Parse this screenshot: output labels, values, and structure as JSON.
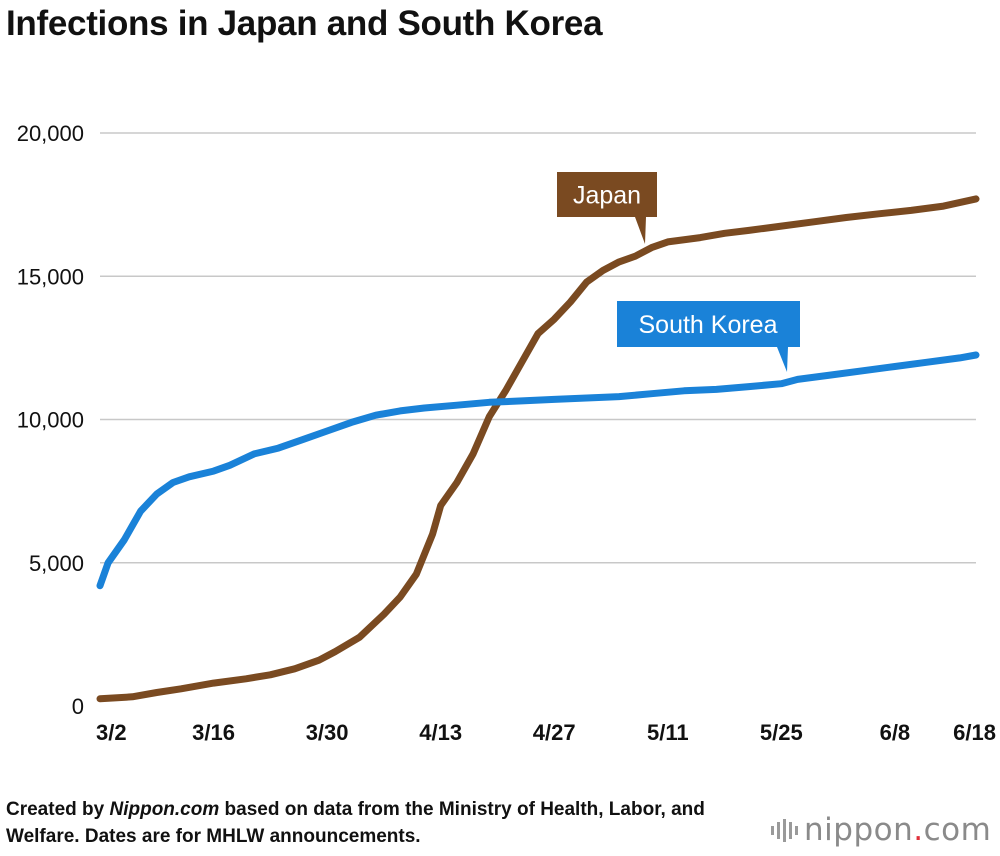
{
  "title": "Infections in Japan and South Korea",
  "caption": {
    "prefix": "Created by ",
    "source": "Nippon.com",
    "suffix": " based on data from the Ministry of Health, Labor, and Welfare. Dates are for MHLW announcements."
  },
  "logo": {
    "name": "nippon",
    "dot": ".",
    "tld": "com"
  },
  "colors": {
    "japan": "#7a4a21",
    "korea": "#1a82d8",
    "grid": "#c8c8c8"
  },
  "chart_data": {
    "type": "line",
    "title": "Infections in Japan and South Korea",
    "xlabel": "",
    "ylabel": "",
    "x_tick_labels": [
      "3/2",
      "3/16",
      "3/30",
      "4/13",
      "4/27",
      "5/11",
      "5/25",
      "6/8",
      "6/18"
    ],
    "x_tick_days": [
      0,
      14,
      28,
      42,
      56,
      70,
      84,
      98,
      108
    ],
    "xlim": [
      0,
      108
    ],
    "ylim": [
      0,
      20000
    ],
    "y_ticks": [
      0,
      5000,
      10000,
      15000,
      20000
    ],
    "y_tick_labels": [
      "0",
      "5,000",
      "10,000",
      "15,000",
      "20,000"
    ],
    "grid": true,
    "series": [
      {
        "name": "Japan",
        "label": "Japan",
        "points": [
          [
            0,
            250
          ],
          [
            4,
            320
          ],
          [
            7,
            470
          ],
          [
            10,
            600
          ],
          [
            14,
            800
          ],
          [
            18,
            950
          ],
          [
            21,
            1090
          ],
          [
            24,
            1300
          ],
          [
            27,
            1600
          ],
          [
            29,
            1900
          ],
          [
            32,
            2400
          ],
          [
            35,
            3200
          ],
          [
            37,
            3800
          ],
          [
            39,
            4600
          ],
          [
            41,
            6000
          ],
          [
            42,
            7000
          ],
          [
            44,
            7800
          ],
          [
            46,
            8800
          ],
          [
            48,
            10100
          ],
          [
            50,
            11000
          ],
          [
            52,
            12000
          ],
          [
            54,
            13000
          ],
          [
            56,
            13500
          ],
          [
            58,
            14100
          ],
          [
            60,
            14800
          ],
          [
            62,
            15200
          ],
          [
            64,
            15500
          ],
          [
            66,
            15700
          ],
          [
            68,
            16000
          ],
          [
            70,
            16200
          ],
          [
            74,
            16350
          ],
          [
            77,
            16500
          ],
          [
            80,
            16600
          ],
          [
            84,
            16750
          ],
          [
            88,
            16900
          ],
          [
            92,
            17050
          ],
          [
            96,
            17180
          ],
          [
            100,
            17300
          ],
          [
            104,
            17450
          ],
          [
            108,
            17700
          ]
        ]
      },
      {
        "name": "South Korea",
        "label": "South Korea",
        "points": [
          [
            0,
            4200
          ],
          [
            1,
            5000
          ],
          [
            3,
            5800
          ],
          [
            5,
            6800
          ],
          [
            7,
            7400
          ],
          [
            9,
            7800
          ],
          [
            11,
            8000
          ],
          [
            14,
            8200
          ],
          [
            16,
            8400
          ],
          [
            19,
            8800
          ],
          [
            22,
            9000
          ],
          [
            25,
            9300
          ],
          [
            28,
            9600
          ],
          [
            31,
            9900
          ],
          [
            34,
            10150
          ],
          [
            37,
            10300
          ],
          [
            40,
            10400
          ],
          [
            44,
            10500
          ],
          [
            48,
            10600
          ],
          [
            52,
            10650
          ],
          [
            56,
            10700
          ],
          [
            60,
            10750
          ],
          [
            64,
            10800
          ],
          [
            68,
            10900
          ],
          [
            72,
            11000
          ],
          [
            76,
            11050
          ],
          [
            80,
            11150
          ],
          [
            84,
            11250
          ],
          [
            86,
            11400
          ],
          [
            90,
            11550
          ],
          [
            94,
            11700
          ],
          [
            98,
            11850
          ],
          [
            102,
            12000
          ],
          [
            106,
            12150
          ],
          [
            108,
            12250
          ]
        ]
      }
    ]
  }
}
